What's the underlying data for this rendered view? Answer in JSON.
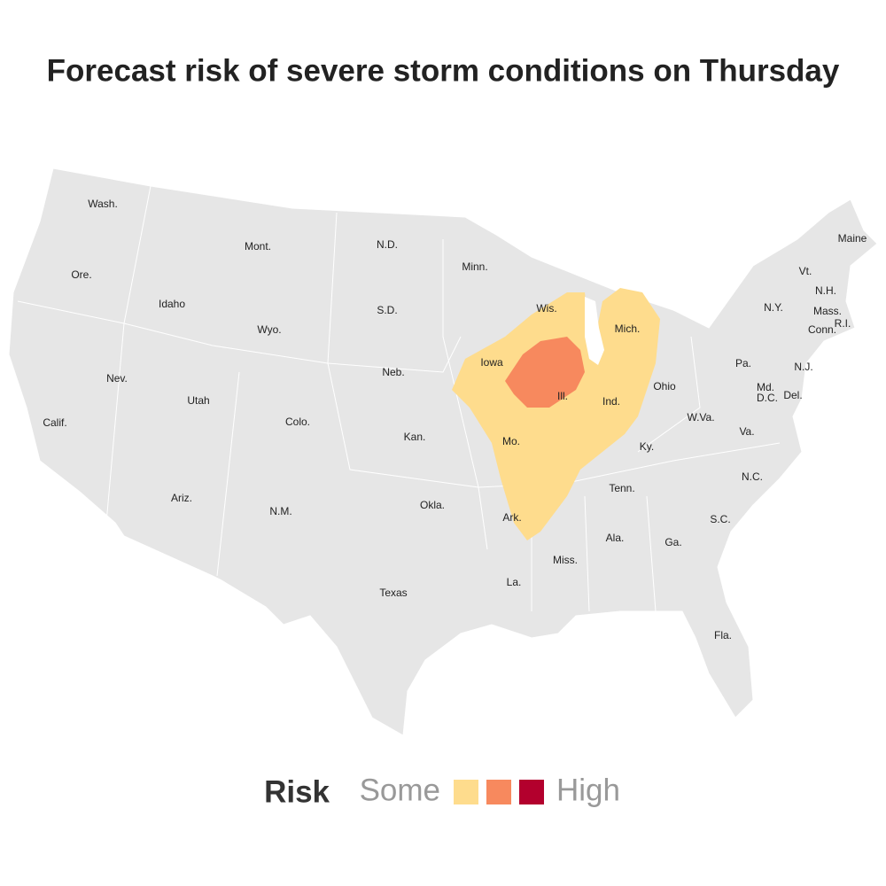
{
  "title": "Forecast risk of severe storm conditions on Thursday",
  "states": [
    "Wash.",
    "Ore.",
    "Calif.",
    "Idaho",
    "Nev.",
    "Utah",
    "Ariz.",
    "Mont.",
    "Wyo.",
    "Colo.",
    "N.M.",
    "N.D.",
    "S.D.",
    "Neb.",
    "Kan.",
    "Okla.",
    "Texas",
    "Minn.",
    "Iowa",
    "Mo.",
    "Ark.",
    "La.",
    "Wis.",
    "Ill.",
    "Mich.",
    "Ind.",
    "Ohio",
    "Ky.",
    "Tenn.",
    "Miss.",
    "Ala.",
    "Ga.",
    "Fla.",
    "S.C.",
    "N.C.",
    "Va.",
    "W.Va.",
    "Pa.",
    "N.Y.",
    "Md.",
    "D.C.",
    "Del.",
    "N.J.",
    "Vt.",
    "N.H.",
    "Maine",
    "Mass.",
    "Conn.",
    "R.I."
  ],
  "legend": {
    "title": "Risk",
    "low_label": "Some",
    "high_label": "High",
    "colors": [
      "#fedc8d",
      "#f7895e",
      "#b3002d"
    ]
  }
}
